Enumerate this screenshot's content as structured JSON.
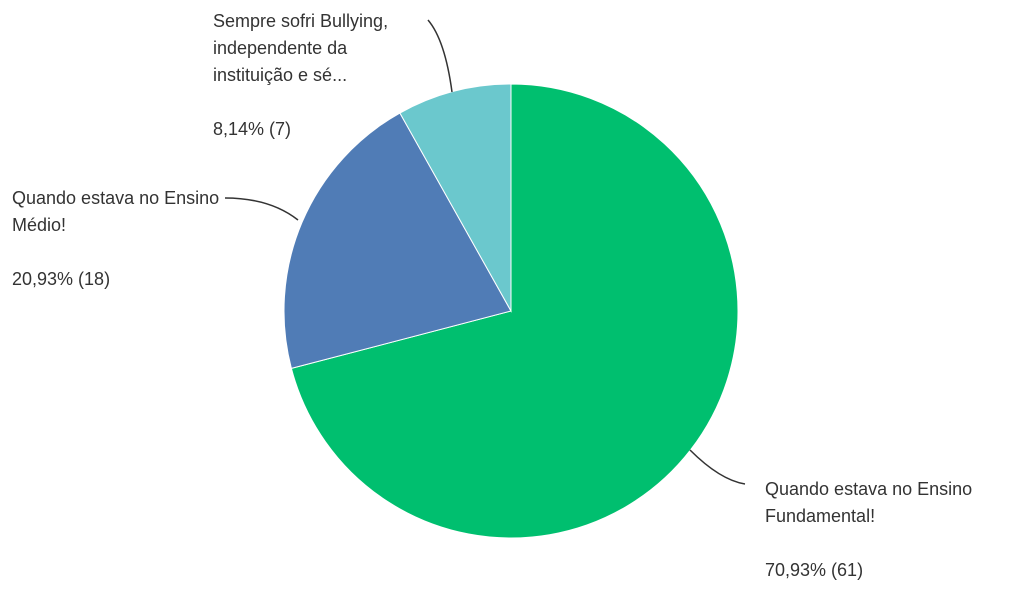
{
  "chart_data": {
    "type": "pie",
    "categories": [
      "Quando estava no Ensino Fundamental!",
      "Quando estava no Ensino Médio!",
      "Sempre sofri Bullying, independente da instituição e sé..."
    ],
    "values": [
      70.93,
      20.93,
      8.14
    ],
    "value_labels": [
      "70,93% (61)",
      "20,93% (18)",
      "8,14% (7)"
    ],
    "colors": [
      "#00bf6f",
      "#507cb6",
      "#6bc8cd"
    ]
  }
}
